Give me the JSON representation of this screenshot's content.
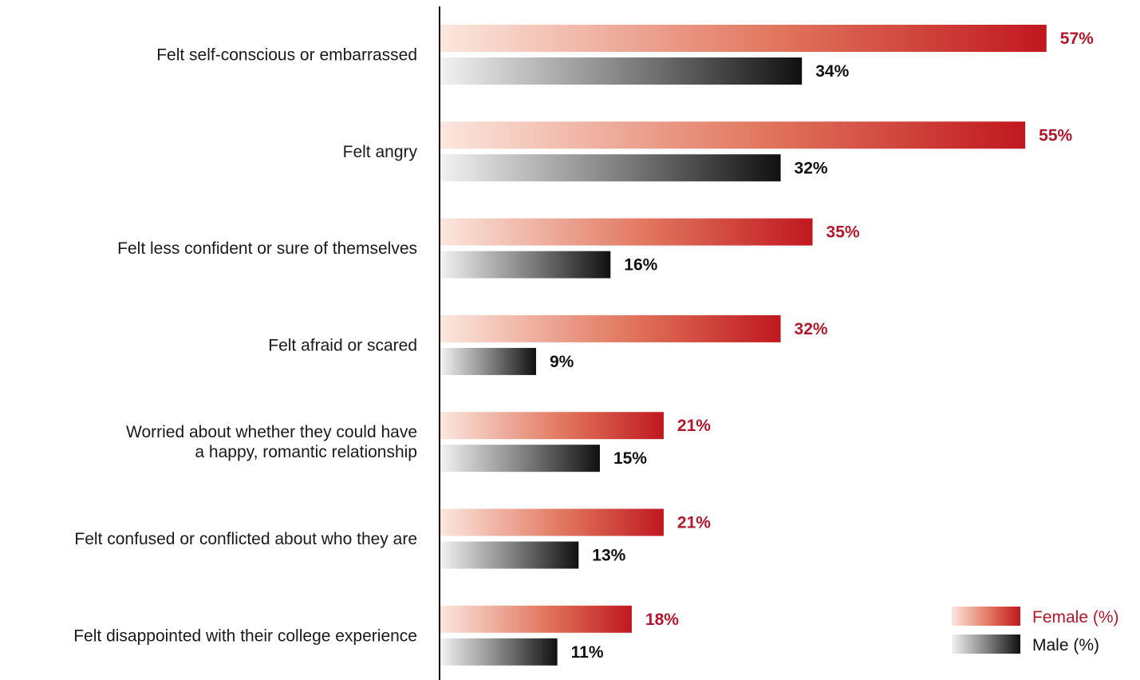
{
  "chart_data": {
    "type": "bar",
    "orientation": "horizontal",
    "categories": [
      [
        "Felt self-conscious or embarrassed"
      ],
      [
        "Felt angry"
      ],
      [
        "Felt less confident or sure of themselves"
      ],
      [
        "Felt afraid or scared"
      ],
      [
        "Worried about whether they could have",
        "a happy, romantic relationship"
      ],
      [
        "Felt confused or conflicted about who they are"
      ],
      [
        "Felt disappointed with their college experience"
      ]
    ],
    "series": [
      {
        "name": "Female (%)",
        "values": [
          57,
          55,
          35,
          32,
          21,
          21,
          18
        ],
        "labels": [
          "57%",
          "55%",
          "35%",
          "32%",
          "21%",
          "21%",
          "18%"
        ],
        "color": "#c41e24"
      },
      {
        "name": "Male (%)",
        "values": [
          34,
          32,
          16,
          9,
          15,
          13,
          11
        ],
        "labels": [
          "34%",
          "32%",
          "16%",
          "9%",
          "15%",
          "13%",
          "11%"
        ],
        "color": "#1a1a1a"
      }
    ],
    "xlim": [
      0,
      60
    ],
    "legend": "bottom-right",
    "grid": false
  }
}
